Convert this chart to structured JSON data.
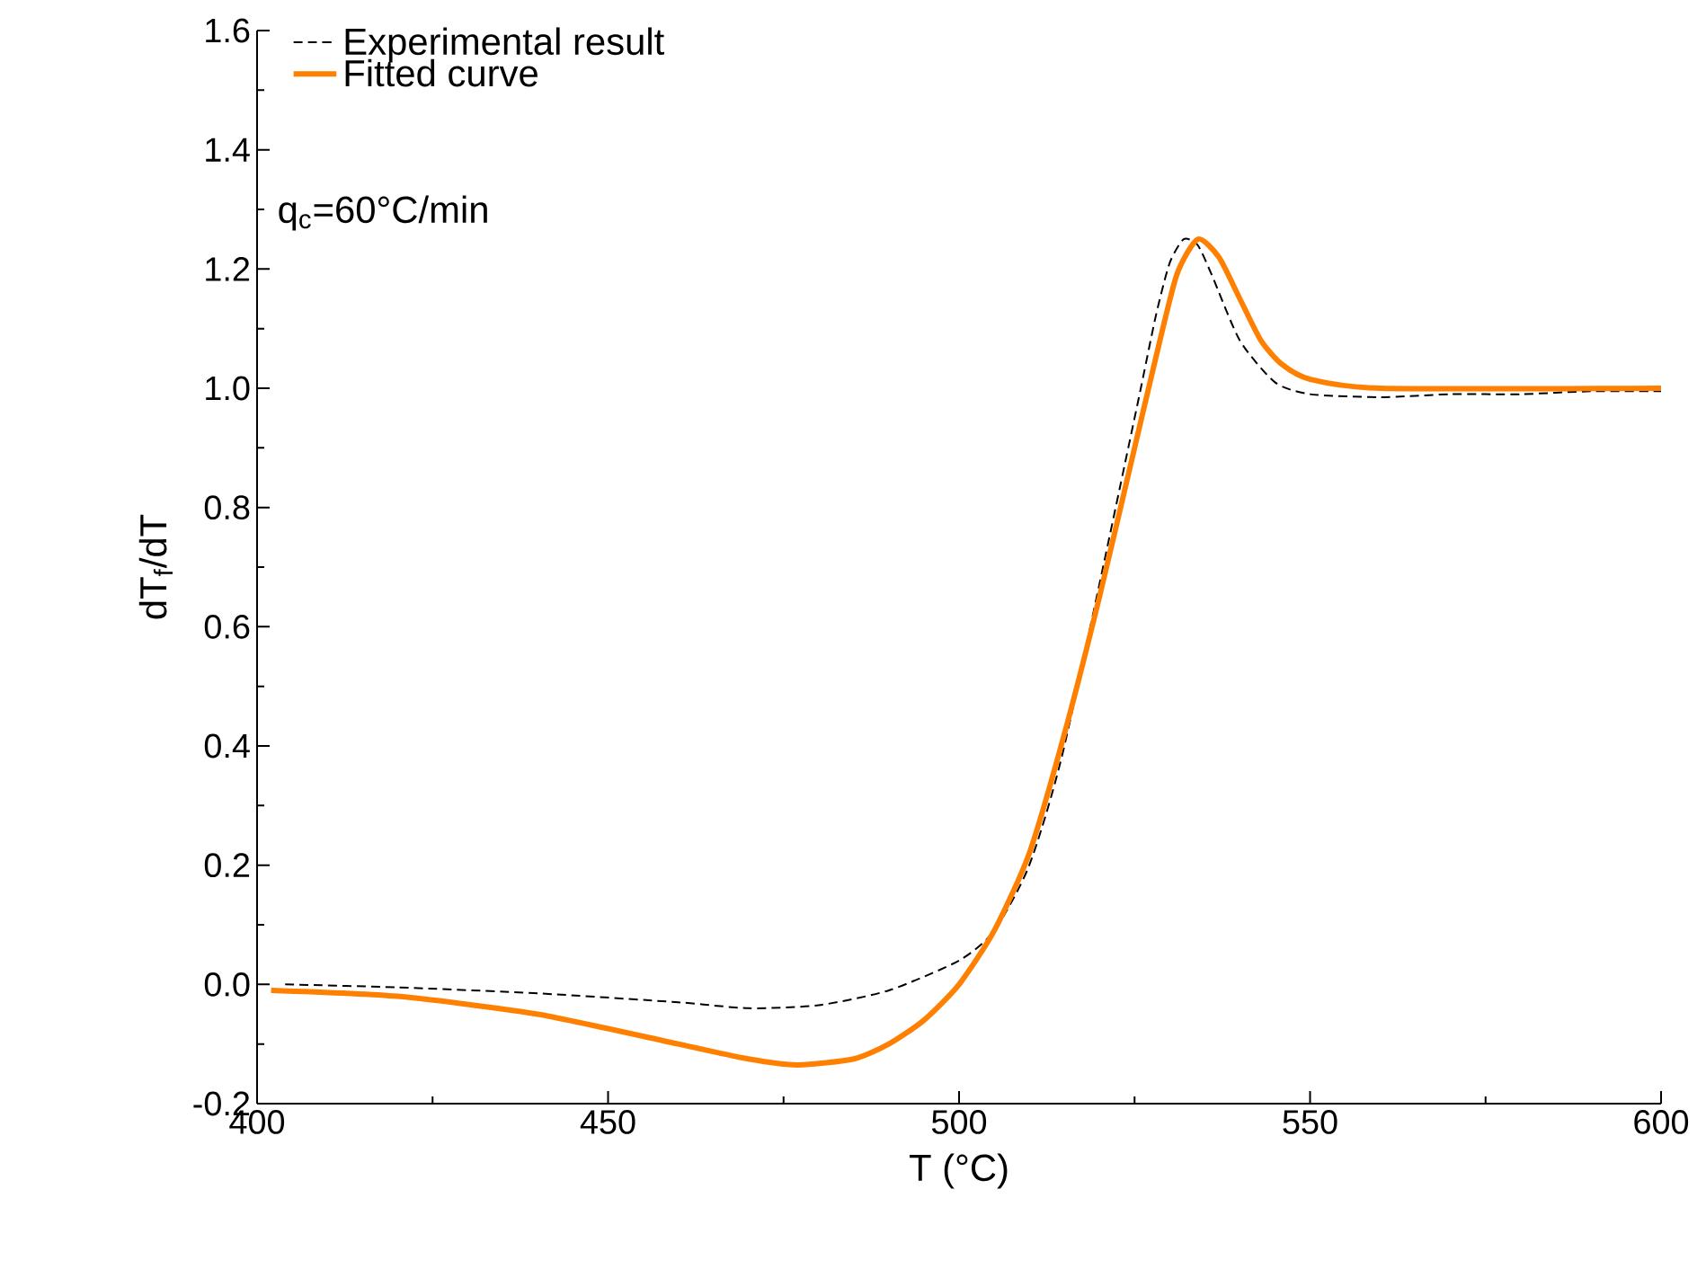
{
  "chart_data": {
    "type": "line",
    "xlabel": "T (°C)",
    "ylabel": "dT$_{f}$/dT",
    "xlim": [
      400,
      600
    ],
    "xticks": [
      400,
      450,
      500,
      550,
      600
    ],
    "ylim": [
      -0.2,
      1.6
    ],
    "yticks": [
      {
        "value": -0.2,
        "label": "-0.2"
      },
      {
        "value": 0,
        "label": "0.0"
      },
      {
        "value": 0.2,
        "label": "0.2"
      },
      {
        "value": 0.4,
        "label": "0.4"
      },
      {
        "value": 0.6,
        "label": "0.6"
      },
      {
        "value": 0.8,
        "label": "0.8"
      },
      {
        "value": 1.0,
        "label": "1.0"
      },
      {
        "value": 1.2,
        "label": "1.2"
      },
      {
        "value": 1.4,
        "label": "1.4"
      },
      {
        "value": 1.6,
        "label": "1.6"
      }
    ],
    "grid": false,
    "legend": "top left",
    "marker": "none",
    "annotations": [
      "q$_{c}$=60°C/min"
    ],
    "series": [
      {
        "name": "Experimental result",
        "color": "#000000",
        "line_style": "dashed",
        "x": [
          404,
          420,
          440,
          460,
          470,
          480,
          490,
          500,
          505,
          510,
          515,
          520,
          525,
          528,
          530,
          532,
          534,
          536,
          540,
          545,
          550,
          560,
          570,
          580,
          590,
          600
        ],
        "values": [
          0.0,
          -0.005,
          -0.015,
          -0.03,
          -0.04,
          -0.035,
          -0.01,
          0.04,
          0.09,
          0.2,
          0.4,
          null,
          0.95,
          1.12,
          1.21,
          1.25,
          1.24,
          1.19,
          1.08,
          1.01,
          0.99,
          0.985,
          0.99,
          0.99,
          0.995,
          0.995
        ]
      },
      {
        "name": "Fitted curve",
        "color": "#ff8000",
        "line_style": "solid",
        "x": [
          402,
          420,
          440,
          460,
          470,
          477,
          485,
          490,
          495,
          500,
          505,
          510,
          515,
          520,
          525,
          528,
          531,
          534,
          537,
          540,
          543,
          546,
          550,
          560,
          600
        ],
        "values": [
          -0.01,
          -0.02,
          -0.05,
          -0.1,
          -0.125,
          -0.135,
          -0.125,
          -0.1,
          -0.06,
          0.0,
          0.09,
          0.22,
          0.42,
          0.65,
          0.9,
          1.05,
          1.19,
          1.25,
          1.22,
          1.15,
          1.08,
          1.04,
          1.015,
          1.0,
          1.0
        ]
      }
    ]
  }
}
